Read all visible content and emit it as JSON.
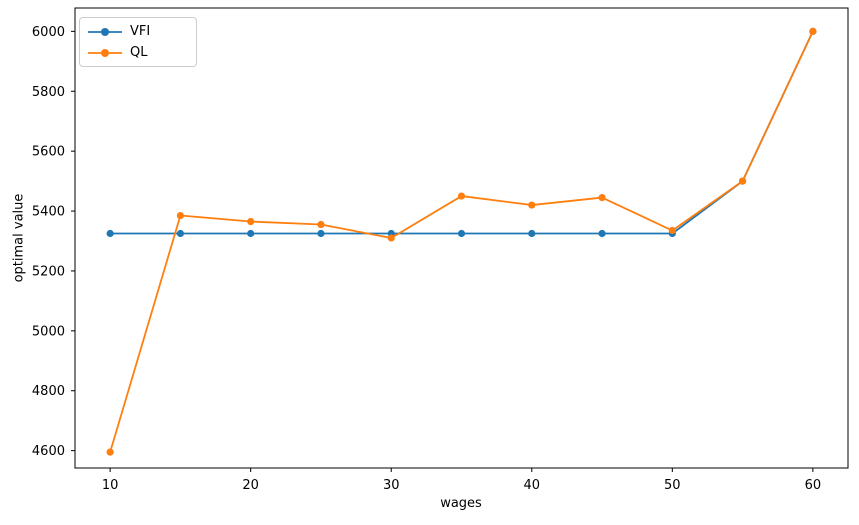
{
  "figure": {
    "background": "#ffffff"
  },
  "chart_data": {
    "type": "line",
    "title": "",
    "xlabel": "wages",
    "ylabel": "optimal value",
    "x": [
      10,
      15,
      20,
      25,
      30,
      35,
      40,
      45,
      50,
      55,
      60
    ],
    "series": [
      {
        "name": "VFI",
        "color": "#1f77b4",
        "marker": "circle",
        "values": [
          5325,
          5325,
          5325,
          5325,
          5325,
          5325,
          5325,
          5325,
          5325,
          5500,
          6000
        ]
      },
      {
        "name": "QL",
        "color": "#ff7f0e",
        "marker": "circle",
        "values": [
          4595,
          5385,
          5365,
          5355,
          5310,
          5450,
          5420,
          5445,
          5335,
          5500,
          6000
        ]
      }
    ],
    "xlim": [
      7.5,
      62.5
    ],
    "ylim": [
      4542,
      6078
    ],
    "xticks": [
      10,
      20,
      30,
      40,
      50,
      60
    ],
    "yticks": [
      4600,
      4800,
      5000,
      5200,
      5400,
      5600,
      5800,
      6000
    ],
    "grid": false,
    "legend": {
      "position": "upper left",
      "labels": [
        "VFI",
        "QL"
      ]
    },
    "axis_color": "#000000",
    "text_color": "#000000"
  }
}
